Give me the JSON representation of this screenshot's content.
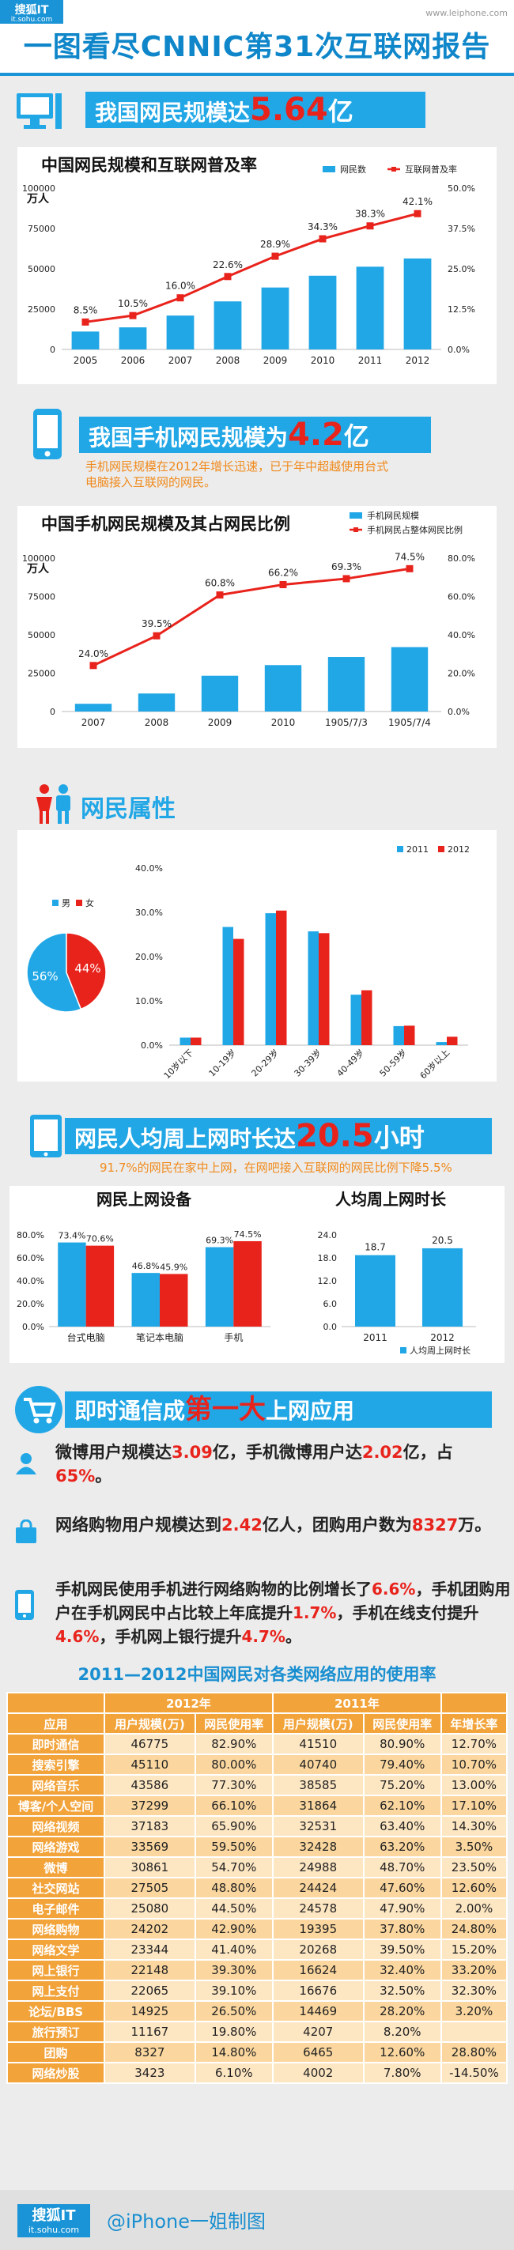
{
  "header": {
    "brand_main": "搜狐IT",
    "brand_sub": "it.sohu.com",
    "watermark": "www.leiphone.com",
    "title": "一图看尽CNNIC第31次互联网报告"
  },
  "section1": {
    "headline_prefix": "我国网民规模达",
    "headline_value": "5.64",
    "headline_suffix": "亿"
  },
  "section2": {
    "headline_prefix": "我国手机网民规模为",
    "headline_value": "4.2",
    "headline_suffix": "亿",
    "note_line1": "手机网民规模在2012年增长迅速，已于年中超越使用台式",
    "note_line2": "电脑接入互联网的网民。"
  },
  "section3": {
    "headline": "网民属性"
  },
  "section4": {
    "headline_prefix": "网民人均周上网时长达",
    "headline_value": "20.5",
    "headline_suffix": "小时",
    "note": "91.7%的网民在家中上网，在网吧接入互联网的网民比例下降5.5%"
  },
  "section5": {
    "headline_prefix": "即时通信成",
    "headline_value": "第一大",
    "headline_suffix": "上网应用"
  },
  "facts": [
    {
      "parts": [
        {
          "t": "微博用户规模达",
          "h": false
        },
        {
          "t": "3.09",
          "h": true
        },
        {
          "t": "亿，手机微博用户达",
          "h": false
        },
        {
          "t": "2.02",
          "h": true
        },
        {
          "t": "亿，占",
          "h": false
        },
        {
          "t": "65%",
          "h": true
        },
        {
          "t": "。",
          "h": false
        }
      ]
    },
    {
      "parts": [
        {
          "t": "网络购物用户规模达到",
          "h": false
        },
        {
          "t": "2.42",
          "h": true
        },
        {
          "t": "亿人，团购用户数为",
          "h": false
        },
        {
          "t": "8327",
          "h": true
        },
        {
          "t": "万。",
          "h": false
        }
      ]
    },
    {
      "parts": [
        {
          "t": "手机网民使用手机进行网络购物的比例增长了",
          "h": false
        },
        {
          "t": "6.6%",
          "h": true
        },
        {
          "t": "，手机团购用户在手机网民中占比较上年底提升",
          "h": false
        },
        {
          "t": "1.7%",
          "h": true
        },
        {
          "t": "，手机在线支付提升",
          "h": false
        },
        {
          "t": "4.6%",
          "h": true
        },
        {
          "t": "，手机网上银行提升",
          "h": false
        },
        {
          "t": "4.7%",
          "h": true
        },
        {
          "t": "。",
          "h": false
        }
      ]
    }
  ],
  "usage_table": {
    "title": "2011—2012中国网民对各类网络应用的使用率",
    "year_2012": "2012年",
    "year_2011": "2011年",
    "col_app": "应用",
    "col_users": "用户规模(万)",
    "col_rate": "网民使用率",
    "col_growth": "年增长率",
    "rows": [
      [
        "即时通信",
        "46775",
        "82.90%",
        "41510",
        "80.90%",
        "12.70%"
      ],
      [
        "搜索引擎",
        "45110",
        "80.00%",
        "40740",
        "79.40%",
        "10.70%"
      ],
      [
        "网络音乐",
        "43586",
        "77.30%",
        "38585",
        "75.20%",
        "13.00%"
      ],
      [
        "博客/个人空间",
        "37299",
        "66.10%",
        "31864",
        "62.10%",
        "17.10%"
      ],
      [
        "网络视频",
        "37183",
        "65.90%",
        "32531",
        "63.40%",
        "14.30%"
      ],
      [
        "网络游戏",
        "33569",
        "59.50%",
        "32428",
        "63.20%",
        "3.50%"
      ],
      [
        "微博",
        "30861",
        "54.70%",
        "24988",
        "48.70%",
        "23.50%"
      ],
      [
        "社交网站",
        "27505",
        "48.80%",
        "24424",
        "47.60%",
        "12.60%"
      ],
      [
        "电子邮件",
        "25080",
        "44.50%",
        "24578",
        "47.90%",
        "2.00%"
      ],
      [
        "网络购物",
        "24202",
        "42.90%",
        "19395",
        "37.80%",
        "24.80%"
      ],
      [
        "网络文学",
        "23344",
        "41.40%",
        "20268",
        "39.50%",
        "15.20%"
      ],
      [
        "网上银行",
        "22148",
        "39.30%",
        "16624",
        "32.40%",
        "33.20%"
      ],
      [
        "网上支付",
        "22065",
        "39.10%",
        "16676",
        "32.50%",
        "32.30%"
      ],
      [
        "论坛/BBS",
        "14925",
        "26.50%",
        "14469",
        "28.20%",
        "3.20%"
      ],
      [
        "旅行预订",
        "11167",
        "19.80%",
        "4207",
        "8.20%",
        ""
      ],
      [
        "团购",
        "8327",
        "14.80%",
        "6465",
        "12.60%",
        "28.80%"
      ],
      [
        "网络炒股",
        "3423",
        "6.10%",
        "4002",
        "7.80%",
        "-14.50%"
      ]
    ]
  },
  "footer": {
    "brand_main": "搜狐IT",
    "brand_sub": "it.sohu.com",
    "credit": "@iPhone一姐制图"
  },
  "colors": {
    "bar": "#22a7e6",
    "line": "#e8231c",
    "orange": "#f2a33a",
    "female": "#e8231c",
    "male": "#22a7e6"
  },
  "chart_data": [
    {
      "type": "bar",
      "title": "中国网民规模和互联网普及率",
      "ylabel": "万人",
      "categories": [
        "2005",
        "2006",
        "2007",
        "2008",
        "2009",
        "2010",
        "2011",
        "2012"
      ],
      "ylim": [
        0,
        100000
      ],
      "yticks": [
        "0",
        "25000",
        "50000",
        "75000",
        "100000"
      ],
      "y2ticks": [
        "0.0%",
        "12.5%",
        "25.0%",
        "37.5%",
        "50.0%"
      ],
      "y2lim": [
        0,
        50
      ],
      "series": [
        {
          "name": "网民数",
          "kind": "bar",
          "values": [
            11100,
            13700,
            21000,
            29800,
            38400,
            45700,
            51300,
            56400
          ]
        },
        {
          "name": "互联网普及率",
          "kind": "line",
          "values": [
            8.5,
            10.5,
            16.0,
            22.6,
            28.9,
            34.3,
            38.3,
            42.1
          ],
          "labels": [
            "8.5%",
            "10.5%",
            "16.0%",
            "22.6%",
            "28.9%",
            "34.3%",
            "38.3%",
            "42.1%"
          ]
        }
      ],
      "legend": "top-right"
    },
    {
      "type": "bar",
      "title": "中国手机网民规模及其占网民比例",
      "ylabel": "万人",
      "categories": [
        "2007",
        "2008",
        "2009",
        "2010",
        "1905/7/3",
        "1905/7/4"
      ],
      "ylim": [
        0,
        100000
      ],
      "yticks": [
        "0",
        "25000",
        "50000",
        "75000",
        "100000"
      ],
      "y2ticks": [
        "0.0%",
        "20.0%",
        "40.0%",
        "60.0%",
        "80.0%"
      ],
      "y2lim": [
        0,
        80
      ],
      "series": [
        {
          "name": "手机网民规模",
          "kind": "bar",
          "values": [
            5040,
            11760,
            23344,
            30274,
            35558,
            41997
          ]
        },
        {
          "name": "手机网民占整体网民比例",
          "kind": "line",
          "values": [
            24.0,
            39.5,
            60.8,
            66.2,
            69.3,
            74.5
          ],
          "labels": [
            "24.0%",
            "39.5%",
            "60.8%",
            "66.2%",
            "69.3%",
            "74.5%"
          ]
        }
      ],
      "legend": "top-right"
    },
    {
      "type": "pie",
      "categories": [
        "男",
        "女"
      ],
      "values": [
        56,
        44
      ],
      "labels": [
        "56%",
        "44%"
      ]
    },
    {
      "type": "bar",
      "categories": [
        "10岁以下",
        "10-19岁",
        "20-29岁",
        "30-39岁",
        "40-49岁",
        "50-59岁",
        "60岁以上"
      ],
      "ylim": [
        0,
        40
      ],
      "yticks": [
        "0.0%",
        "10.0%",
        "20.0%",
        "30.0%",
        "40.0%"
      ],
      "series": [
        {
          "name": "2011",
          "values": [
            1.7,
            26.7,
            29.8,
            25.7,
            11.4,
            4.3,
            0.7
          ]
        },
        {
          "name": "2012",
          "values": [
            1.7,
            24.0,
            30.4,
            25.3,
            12.4,
            4.4,
            1.9
          ]
        }
      ],
      "legend": "top-right"
    },
    {
      "type": "bar",
      "title": "网民上网设备",
      "categories": [
        "台式电脑",
        "笔记本电脑",
        "手机"
      ],
      "ylim": [
        0,
        80
      ],
      "yticks": [
        "0.0%",
        "20.0%",
        "40.0%",
        "60.0%",
        "80.0%"
      ],
      "series": [
        {
          "name": "2011",
          "values": [
            73.4,
            46.8,
            69.3
          ],
          "labels": [
            "73.4%",
            "46.8%",
            "69.3%"
          ]
        },
        {
          "name": "2012",
          "values": [
            70.6,
            45.9,
            74.5
          ],
          "labels": [
            "70.6%",
            "45.9%",
            "74.5%"
          ]
        }
      ]
    },
    {
      "type": "bar",
      "title": "人均周上网时长",
      "categories": [
        "2011",
        "2012"
      ],
      "ylim": [
        0,
        24
      ],
      "yticks": [
        "0.0",
        "6.0",
        "12.0",
        "18.0",
        "24.0"
      ],
      "series": [
        {
          "name": "人均周上网时长",
          "values": [
            18.7,
            20.5
          ],
          "labels": [
            "18.7",
            "20.5"
          ]
        }
      ],
      "legend": "bottom-right"
    }
  ]
}
